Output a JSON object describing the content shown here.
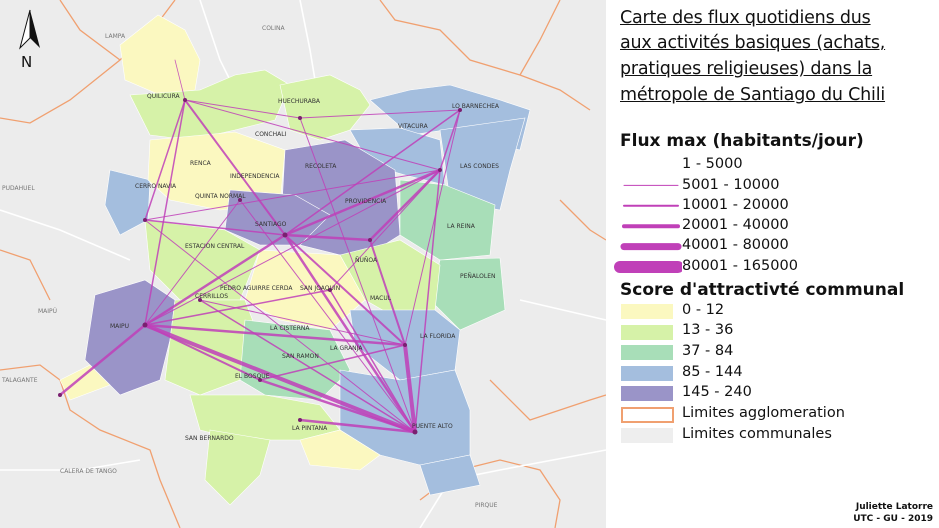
{
  "title_lines": [
    "Carte des flux quotidiens dus",
    "aux activités basiques (achats,",
    "pratiques religieuses) dans la",
    "métropole de Santiago du Chili"
  ],
  "north_arrow": {
    "letter": "N",
    "icon": "north-arrow-icon"
  },
  "flux_legend": {
    "heading": "Flux max (habitants/jour)",
    "classes": [
      {
        "label": "1 - 5000",
        "width": 0
      },
      {
        "label": "5001 - 10000",
        "width": 1
      },
      {
        "label": "10001 - 20000",
        "width": 2
      },
      {
        "label": "20001 - 40000",
        "width": 4
      },
      {
        "label": "40001 - 80000",
        "width": 7
      },
      {
        "label": "80001 - 165000",
        "width": 12
      }
    ],
    "color": "#c040b8"
  },
  "score_legend": {
    "heading": "Score d'attractivté communal",
    "classes": [
      {
        "label": "0 - 12",
        "color": "#fbf8c0"
      },
      {
        "label": "13 - 36",
        "color": "#d6f2a8"
      },
      {
        "label": "37 - 84",
        "color": "#a8deb8"
      },
      {
        "label": "85 - 144",
        "color": "#a4bede"
      },
      {
        "label": "145 - 240",
        "color": "#9a94c8"
      }
    ]
  },
  "limits_legend": [
    {
      "label": "Limites agglomeration",
      "color": "#f0a070"
    },
    {
      "label": "Limites communales",
      "color": "#eeeeee"
    }
  ],
  "credits": [
    "Juliette Latorre",
    "UTC - GU - 2019"
  ],
  "place_labels": {
    "inside": [
      "QUILICURA",
      "HUECHURABA",
      "LO BARNECHEA",
      "VITACURA",
      "LAS CONDES",
      "CONCHALI",
      "RECOLETA",
      "CERRO NAVIA",
      "INDEPENDENCIA",
      "QUINTA NORMAL",
      "ESTACION CENTRAL",
      "LA REINA",
      "PEÑALOLEN",
      "CERRILLOS",
      "SAN JOAQUIN",
      "LA FLORIDA",
      "MAIPU",
      "SAN RAMON",
      "SAN BERNARDO",
      "LA PINTANA",
      "PUENTE ALTO",
      "RENCA",
      "PROVIDENCIA",
      "ÑUÑOA",
      "SANTIAGO",
      "PEDRO AGUIRRE CERDA",
      "LA CISTERNA",
      "EL BOSQUE",
      "LA GRANJA",
      "MACUL"
    ],
    "outside": [
      "COLINA",
      "LAMPA",
      "PUDAHUEL",
      "MAIPÚ",
      "TALAGANTE",
      "CALERA DE TANGO",
      "PIRQUE"
    ]
  }
}
